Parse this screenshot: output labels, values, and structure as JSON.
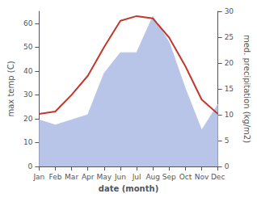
{
  "chart_data": {
    "type": "line",
    "xlabel": "date (month)",
    "ylabel": "max temp (C)",
    "y2label": "med. precipitation (kg/m2)",
    "categories": [
      "Jan",
      "Feb",
      "Mar",
      "Apr",
      "May",
      "Jun",
      "Jul",
      "Aug",
      "Sep",
      "Oct",
      "Nov",
      "Dec"
    ],
    "series": [
      {
        "type": "area",
        "color": "#b8c4e8",
        "axis": "y2",
        "values": [
          9,
          8,
          9,
          10,
          18,
          22,
          22,
          29,
          24,
          15,
          7,
          12
        ]
      },
      {
        "type": "line",
        "color": "#c0392b",
        "values": [
          22,
          23,
          30,
          38,
          50,
          61,
          63,
          62,
          54,
          42,
          28,
          22
        ]
      }
    ],
    "ylim": [
      0,
      65
    ],
    "yticks": [
      0,
      10,
      20,
      30,
      40,
      50,
      60
    ],
    "y2lim": [
      0,
      30
    ],
    "y2ticks": [
      0,
      5,
      10,
      15,
      20,
      25,
      30
    ],
    "grid": false
  }
}
